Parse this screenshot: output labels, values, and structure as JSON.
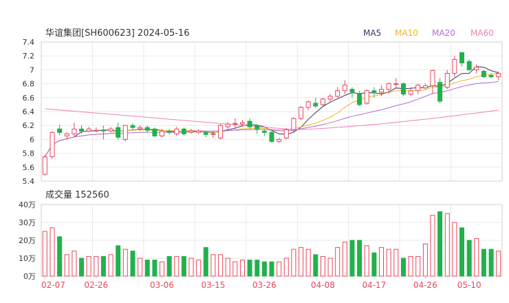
{
  "chart_data": {
    "type": "candlestick",
    "title": "华谊集团[SH600623] 2024-05-16",
    "legend": [
      {
        "name": "MA5",
        "color": "#333366"
      },
      {
        "name": "MA10",
        "color": "#f0b429"
      },
      {
        "name": "MA20",
        "color": "#b26ad9"
      },
      {
        "name": "MA60",
        "color": "#f080b8"
      }
    ],
    "colors": {
      "up": "#e8455a",
      "down": "#22b14c",
      "grid": "#e9e9e9",
      "date": "#e8455a"
    },
    "price_axis": {
      "ticks": [
        "7.4",
        "7.2",
        "7",
        "6.8",
        "6.6",
        "6.4",
        "6.2",
        "6",
        "5.8",
        "5.6",
        "5.4"
      ],
      "min": 5.4,
      "max": 7.4
    },
    "volume_title": "成交量 152560",
    "volume_axis": {
      "ticks": [
        "40万",
        "30万",
        "20万",
        "10万",
        "0万"
      ],
      "max": 40
    },
    "date_labels": [
      "02-07",
      "02-26",
      "03-06",
      "03-15",
      "03-26",
      "04-08",
      "04-17",
      "04-26",
      "05-10"
    ],
    "date_label_index": [
      0,
      7,
      16,
      23,
      30,
      38,
      45,
      52,
      58
    ],
    "ohlc": [
      [
        5.5,
        5.75,
        5.48,
        5.78
      ],
      [
        5.75,
        6.1,
        5.72,
        6.12
      ],
      [
        6.15,
        6.1,
        6.06,
        6.21
      ],
      [
        6.05,
        6.08,
        6.0,
        6.1
      ],
      [
        6.08,
        6.15,
        6.04,
        6.24
      ],
      [
        6.15,
        6.12,
        6.08,
        6.2
      ],
      [
        6.12,
        6.15,
        6.1,
        6.18
      ],
      [
        6.12,
        6.13,
        6.1,
        6.17
      ],
      [
        6.13,
        6.12,
        6.0,
        6.2
      ],
      [
        6.12,
        6.15,
        6.1,
        6.18
      ],
      [
        6.17,
        6.03,
        6.0,
        6.24
      ],
      [
        6.0,
        6.2,
        5.97,
        6.21
      ],
      [
        6.2,
        6.17,
        6.14,
        6.23
      ],
      [
        6.15,
        6.17,
        6.12,
        6.2
      ],
      [
        6.17,
        6.13,
        6.1,
        6.2
      ],
      [
        6.15,
        6.05,
        6.03,
        6.17
      ],
      [
        6.05,
        6.12,
        6.03,
        6.15
      ],
      [
        6.12,
        6.1,
        6.07,
        6.15
      ],
      [
        6.08,
        6.15,
        6.05,
        6.18
      ],
      [
        6.15,
        6.08,
        6.05,
        6.17
      ],
      [
        6.1,
        6.12,
        6.08,
        6.15
      ],
      [
        6.1,
        6.12,
        6.08,
        6.15
      ],
      [
        6.1,
        6.07,
        6.03,
        6.12
      ],
      [
        6.07,
        6.08,
        6.02,
        6.12
      ],
      [
        6.02,
        6.2,
        6.0,
        6.22
      ],
      [
        6.18,
        6.22,
        6.15,
        6.25
      ],
      [
        6.22,
        6.23,
        6.15,
        6.3
      ],
      [
        6.22,
        6.24,
        6.18,
        6.28
      ],
      [
        6.26,
        6.18,
        6.15,
        6.3
      ],
      [
        6.2,
        6.15,
        6.08,
        6.22
      ],
      [
        6.12,
        6.1,
        6.05,
        6.14
      ],
      [
        6.1,
        5.97,
        5.95,
        6.12
      ],
      [
        5.97,
        6.0,
        5.95,
        6.02
      ],
      [
        6.02,
        6.14,
        6.0,
        6.16
      ],
      [
        6.14,
        6.3,
        6.1,
        6.32
      ],
      [
        6.3,
        6.46,
        6.28,
        6.48
      ],
      [
        6.46,
        6.54,
        6.42,
        6.56
      ],
      [
        6.52,
        6.48,
        6.45,
        6.6
      ],
      [
        6.5,
        6.58,
        6.48,
        6.6
      ],
      [
        6.58,
        6.62,
        6.55,
        6.65
      ],
      [
        6.62,
        6.7,
        6.6,
        6.75
      ],
      [
        6.7,
        6.78,
        6.65,
        6.85
      ],
      [
        6.72,
        6.68,
        6.6,
        6.75
      ],
      [
        6.65,
        6.5,
        6.48,
        6.7
      ],
      [
        6.52,
        6.7,
        6.5,
        6.72
      ],
      [
        6.7,
        6.68,
        6.6,
        6.75
      ],
      [
        6.68,
        6.72,
        6.62,
        6.78
      ],
      [
        6.72,
        6.8,
        6.66,
        6.82
      ],
      [
        6.8,
        6.8,
        6.75,
        6.88
      ],
      [
        6.8,
        6.65,
        6.62,
        6.82
      ],
      [
        6.65,
        6.7,
        6.62,
        6.75
      ],
      [
        6.7,
        6.78,
        6.65,
        6.8
      ],
      [
        6.74,
        6.77,
        6.72,
        6.8
      ],
      [
        6.77,
        6.99,
        6.65,
        7.0
      ],
      [
        6.82,
        6.55,
        6.52,
        6.88
      ],
      [
        6.75,
        6.95,
        6.72,
        7.0
      ],
      [
        6.95,
        7.15,
        6.9,
        7.2
      ],
      [
        7.25,
        7.1,
        7.05,
        7.25
      ],
      [
        7.12,
        7.0,
        6.98,
        7.15
      ],
      [
        7.0,
        7.04,
        6.95,
        7.08
      ],
      [
        6.98,
        6.9,
        6.88,
        7.0
      ],
      [
        6.92,
        6.9,
        6.88,
        6.95
      ],
      [
        6.9,
        6.95,
        6.85,
        6.98
      ]
    ],
    "volume_wan": [
      25,
      27,
      22,
      12,
      14,
      10,
      11,
      11,
      11,
      12,
      17,
      15,
      14,
      10,
      9,
      9,
      8,
      11,
      11,
      11,
      10,
      9,
      16,
      12,
      12,
      10,
      8,
      9,
      9,
      9,
      8,
      8,
      8,
      10,
      15,
      16,
      15,
      12,
      11,
      10,
      16,
      19,
      20,
      20,
      17,
      13,
      16,
      15,
      15,
      10,
      11,
      11,
      18,
      34,
      36,
      35,
      30,
      27,
      20,
      21,
      15,
      15,
      14
    ]
  }
}
